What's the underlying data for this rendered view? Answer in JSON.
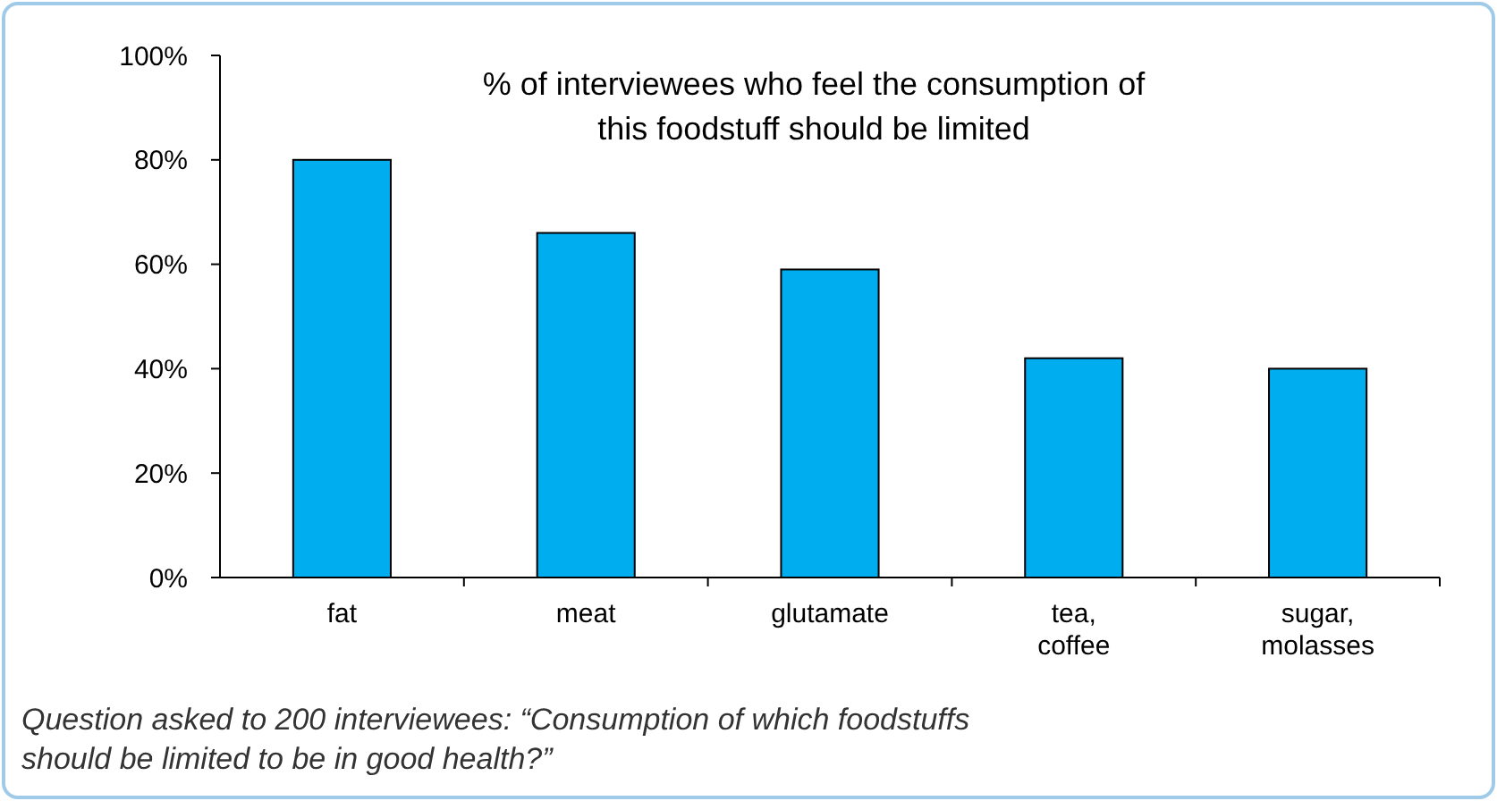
{
  "chart_data": {
    "type": "bar",
    "title": "% of interviewees who feel the consumption of this foodstuff should be limited",
    "categories": [
      "fat",
      "meat",
      "glutamate",
      "tea, coffee",
      "sugar, molasses"
    ],
    "values": [
      80,
      66,
      59,
      42,
      40
    ],
    "color": "#00adef",
    "ylim": [
      0,
      100
    ],
    "yticks": [
      {
        "value": 0,
        "label": "0%"
      },
      {
        "value": 20,
        "label": "20%"
      },
      {
        "value": 40,
        "label": "40%"
      },
      {
        "value": 60,
        "label": "60%"
      },
      {
        "value": 80,
        "label": "80%"
      },
      {
        "value": 100,
        "label": "100%"
      }
    ],
    "grid": false,
    "annotations": [
      "Question asked to 200 interviewees: “Consumption of which foodstuffs should be limited to be in good health?”"
    ]
  }
}
